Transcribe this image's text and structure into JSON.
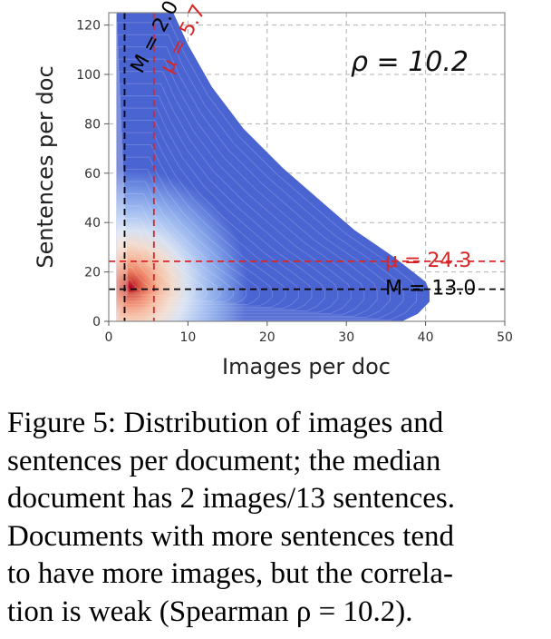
{
  "chart_data": {
    "type": "heatmap",
    "xlabel": "Images per doc",
    "ylabel": "Sentences per doc",
    "xlim": [
      0,
      50
    ],
    "ylim": [
      0,
      125
    ],
    "xticks": [
      "0",
      "10",
      "20",
      "30",
      "40",
      "50"
    ],
    "yticks": [
      "0",
      "20",
      "40",
      "60",
      "80",
      "100",
      "120"
    ],
    "xtick_values": [
      0,
      10,
      20,
      30,
      40,
      50
    ],
    "ytick_values": [
      0,
      20,
      40,
      60,
      80,
      100,
      120
    ],
    "grid": true,
    "colormap": "coolwarm",
    "peak": {
      "x": 2.5,
      "y": 12
    },
    "density_boundary": [
      [
        1.0,
        0
      ],
      [
        37.0,
        0
      ],
      [
        39.0,
        3
      ],
      [
        40.5,
        8
      ],
      [
        40.5,
        12
      ],
      [
        40.0,
        16
      ],
      [
        36.0,
        26
      ],
      [
        31.0,
        37
      ],
      [
        27.0,
        48
      ],
      [
        22.0,
        62
      ],
      [
        17.0,
        78
      ],
      [
        13.0,
        95
      ],
      [
        10.0,
        112
      ],
      [
        8.0,
        126
      ],
      [
        1.0,
        126
      ]
    ],
    "lines": [
      {
        "name": "median-images",
        "axis": "x",
        "value": 2.0,
        "label": "M = 2.0",
        "color": "#000000"
      },
      {
        "name": "mean-images",
        "axis": "x",
        "value": 5.7,
        "label": "μ = 5.7",
        "color": "#d62728"
      },
      {
        "name": "mean-sentences",
        "axis": "y",
        "value": 24.3,
        "label": "μ = 24.3",
        "color": "#d62728"
      },
      {
        "name": "median-sentences",
        "axis": "y",
        "value": 13.0,
        "label": "M = 13.0",
        "color": "#000000"
      }
    ],
    "correlation_label": "ρ = 10.2"
  },
  "caption": {
    "lines": [
      "Figure 5: Distribution of images and",
      "sentences per document; the median",
      "document has 2 images/13 sentences.",
      "Documents with more sentences tend",
      "to have more images, but the correla-",
      "tion is weak (Spearman ρ = 10.2)."
    ]
  },
  "colors": {
    "low": "#3b4cc0",
    "mid": "#ffffff",
    "high": "#b40426",
    "grid": "#b0b0b0",
    "frame": "#888888"
  }
}
